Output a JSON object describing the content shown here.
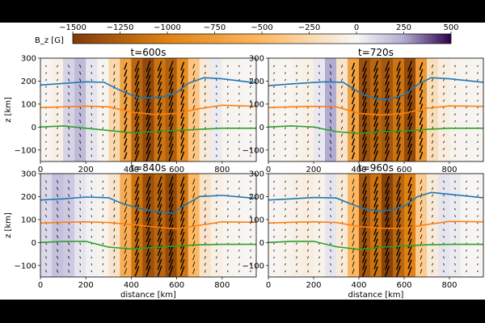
{
  "figure": {
    "background": "#000000",
    "plot_background": "#ffffff"
  },
  "colorbar": {
    "label": "B_z [G]",
    "ticks": [
      -1500,
      -1250,
      -1000,
      -750,
      -500,
      -250,
      0,
      250,
      500
    ],
    "tick_labels": [
      "−1500",
      "−1250",
      "−1000",
      "−750",
      "−500",
      "−250",
      "0",
      "250",
      "500"
    ],
    "range": [
      -1500,
      500
    ],
    "colormap": "PuOr",
    "colors": {
      "neg_strong": "#7f3b08",
      "neg_mid": "#e08214",
      "neg_weak": "#fdb863",
      "zero": "#f7f7f7",
      "pos_weak": "#b2abd2",
      "pos_strong": "#2d004b"
    }
  },
  "chart_data": [
    {
      "type": "heatmap",
      "title": "t=600s",
      "xlabel": "",
      "ylabel": "z [km]",
      "xlim": [
        0,
        950
      ],
      "ylim": [
        -150,
        300
      ],
      "xticks": [
        0,
        200,
        400,
        600,
        800
      ],
      "yticks": [
        -100,
        0,
        100,
        200,
        300
      ],
      "columns": {
        "x_edges": [
          0,
          50,
          100,
          150,
          200,
          250,
          300,
          350,
          400,
          450,
          500,
          550,
          600,
          650,
          700,
          750,
          800,
          850,
          900,
          950
        ],
        "bz": [
          -20,
          -60,
          120,
          200,
          60,
          -30,
          -250,
          -700,
          -1200,
          -1400,
          -1100,
          -1250,
          -900,
          -400,
          -100,
          40,
          -30,
          -20,
          -10
        ]
      },
      "lines": [
        {
          "color": "#1f77b4",
          "x": [
            0,
            100,
            200,
            280,
            350,
            430,
            480,
            540,
            600,
            650,
            720,
            800,
            950
          ],
          "z": [
            183,
            190,
            197,
            195,
            160,
            128,
            127,
            132,
            150,
            190,
            215,
            210,
            192
          ]
        },
        {
          "color": "#ff7f0e",
          "x": [
            0,
            100,
            200,
            300,
            400,
            500,
            600,
            700,
            800,
            950
          ],
          "z": [
            85,
            88,
            91,
            88,
            65,
            55,
            60,
            80,
            95,
            90
          ]
        },
        {
          "color": "#2ca02c",
          "x": [
            0,
            100,
            200,
            300,
            400,
            500,
            600,
            700,
            800,
            950
          ],
          "z": [
            0,
            5,
            -5,
            -15,
            -25,
            -20,
            -15,
            -10,
            -5,
            -5
          ]
        }
      ]
    },
    {
      "type": "heatmap",
      "title": "t=720s",
      "xlabel": "",
      "ylabel": "",
      "xlim": [
        0,
        950
      ],
      "ylim": [
        -150,
        300
      ],
      "xticks": [
        0,
        200,
        400,
        600,
        800
      ],
      "yticks": [
        -100,
        0,
        100,
        200,
        300
      ],
      "columns": {
        "x_edges": [
          0,
          50,
          100,
          150,
          200,
          250,
          300,
          350,
          400,
          450,
          500,
          550,
          600,
          650,
          700,
          750,
          800,
          850,
          900,
          950
        ],
        "bz": [
          -30,
          -20,
          -40,
          -60,
          50,
          250,
          -150,
          -700,
          -1350,
          -1200,
          -1300,
          -1100,
          -1400,
          -800,
          -200,
          -80,
          -40,
          -30,
          -20
        ]
      },
      "lines": [
        {
          "color": "#1f77b4",
          "x": [
            0,
            100,
            250,
            330,
            420,
            480,
            540,
            600,
            660,
            720,
            800,
            950
          ],
          "z": [
            180,
            188,
            197,
            195,
            140,
            122,
            122,
            140,
            185,
            215,
            210,
            195
          ]
        },
        {
          "color": "#ff7f0e",
          "x": [
            0,
            100,
            200,
            300,
            400,
            500,
            600,
            700,
            800,
            950
          ],
          "z": [
            85,
            88,
            90,
            88,
            60,
            52,
            60,
            82,
            92,
            90
          ]
        },
        {
          "color": "#2ca02c",
          "x": [
            0,
            100,
            200,
            300,
            400,
            500,
            600,
            700,
            800,
            950
          ],
          "z": [
            0,
            5,
            0,
            -20,
            -28,
            -20,
            -18,
            -10,
            -5,
            -5
          ]
        }
      ]
    },
    {
      "type": "heatmap",
      "title": "t=840s",
      "xlabel": "distance [km]",
      "ylabel": "z [km]",
      "xlim": [
        0,
        950
      ],
      "ylim": [
        -150,
        300
      ],
      "xticks": [
        0,
        200,
        400,
        600,
        800
      ],
      "yticks": [
        -100,
        0,
        100,
        200,
        300
      ],
      "columns": {
        "x_edges": [
          0,
          50,
          100,
          150,
          200,
          250,
          300,
          350,
          400,
          450,
          500,
          550,
          600,
          650,
          700,
          750,
          800,
          850,
          900,
          950
        ],
        "bz": [
          100,
          180,
          150,
          60,
          20,
          -40,
          -150,
          -600,
          -1100,
          -1350,
          -1200,
          -1400,
          -1100,
          -500,
          -150,
          -60,
          -30,
          -20,
          -10
        ]
      },
      "lines": [
        {
          "color": "#1f77b4",
          "x": [
            0,
            100,
            200,
            300,
            360,
            430,
            500,
            580,
            640,
            700,
            800,
            950
          ],
          "z": [
            185,
            190,
            198,
            195,
            170,
            150,
            135,
            128,
            165,
            200,
            205,
            192
          ]
        },
        {
          "color": "#ff7f0e",
          "x": [
            0,
            100,
            200,
            300,
            400,
            500,
            600,
            700,
            800,
            950
          ],
          "z": [
            85,
            88,
            90,
            87,
            78,
            68,
            60,
            75,
            90,
            88
          ]
        },
        {
          "color": "#2ca02c",
          "x": [
            0,
            100,
            200,
            300,
            400,
            500,
            600,
            700,
            800,
            950
          ],
          "z": [
            0,
            5,
            5,
            -20,
            -28,
            -22,
            -15,
            -10,
            -8,
            -8
          ]
        }
      ]
    },
    {
      "type": "heatmap",
      "title": "t=960s",
      "xlabel": "distance [km]",
      "ylabel": "",
      "xlim": [
        0,
        950
      ],
      "ylim": [
        -150,
        300
      ],
      "xticks": [
        0,
        200,
        400,
        600,
        800
      ],
      "yticks": [
        -100,
        0,
        100,
        200,
        300
      ],
      "columns": {
        "x_edges": [
          0,
          50,
          100,
          150,
          200,
          250,
          300,
          350,
          400,
          450,
          500,
          550,
          600,
          650,
          700,
          750,
          800,
          850,
          900,
          950
        ],
        "bz": [
          -20,
          -40,
          -60,
          -80,
          -40,
          60,
          -100,
          -500,
          -1300,
          -1100,
          -1450,
          -1200,
          -1000,
          -350,
          -100,
          60,
          40,
          -20,
          -10
        ]
      },
      "lines": [
        {
          "color": "#1f77b4",
          "x": [
            0,
            100,
            200,
            300,
            360,
            420,
            480,
            540,
            600,
            660,
            720,
            800,
            950
          ],
          "z": [
            185,
            190,
            196,
            194,
            170,
            148,
            138,
            140,
            158,
            200,
            218,
            210,
            195
          ]
        },
        {
          "color": "#ff7f0e",
          "x": [
            0,
            100,
            200,
            300,
            400,
            500,
            600,
            700,
            800,
            950
          ],
          "z": [
            85,
            88,
            90,
            87,
            70,
            62,
            62,
            78,
            92,
            90
          ]
        },
        {
          "color": "#2ca02c",
          "x": [
            0,
            100,
            200,
            300,
            400,
            500,
            600,
            700,
            800,
            950
          ],
          "z": [
            0,
            5,
            5,
            -18,
            -30,
            -20,
            -15,
            -10,
            -8,
            -8
          ]
        }
      ]
    }
  ]
}
